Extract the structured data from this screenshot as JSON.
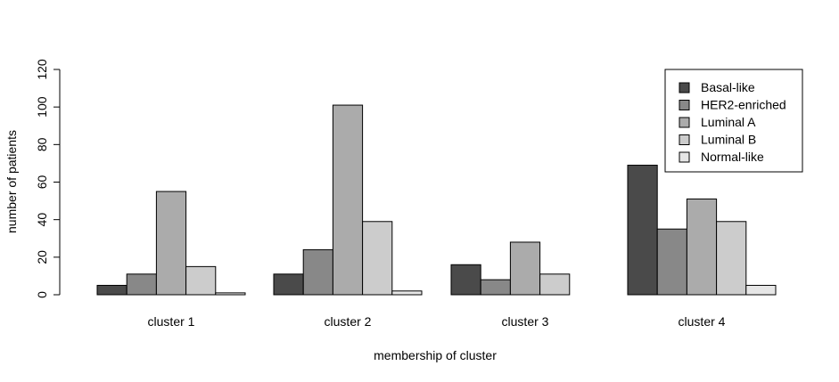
{
  "chart_data": {
    "type": "bar",
    "title": "",
    "xlabel": "membership of cluster",
    "ylabel": "number of patients",
    "ylim": [
      0,
      120
    ],
    "yticks": [
      0,
      20,
      40,
      60,
      80,
      100,
      120
    ],
    "categories": [
      "cluster 1",
      "cluster 2",
      "cluster 3",
      "cluster 4"
    ],
    "series": [
      {
        "name": "Basal-like",
        "color": "#4a4a4a",
        "values": [
          5,
          11,
          16,
          69
        ]
      },
      {
        "name": "HER2-enriched",
        "color": "#888888",
        "values": [
          11,
          24,
          8,
          35
        ]
      },
      {
        "name": "Luminal A",
        "color": "#ababab",
        "values": [
          55,
          101,
          28,
          51
        ]
      },
      {
        "name": "Luminal B",
        "color": "#cccccc",
        "values": [
          15,
          39,
          11,
          39
        ]
      },
      {
        "name": "Normal-like",
        "color": "#e6e6e6",
        "values": [
          1,
          2,
          0,
          5
        ]
      }
    ],
    "legend_position": "top-right",
    "grid": false
  }
}
